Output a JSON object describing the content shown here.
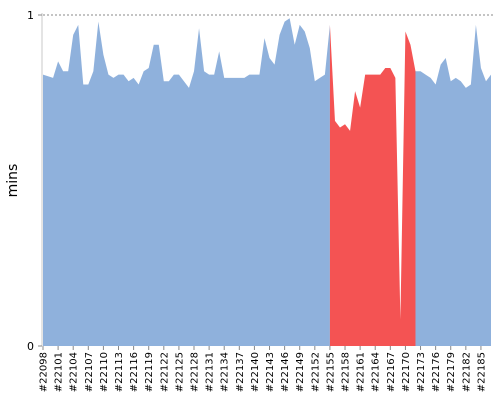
{
  "chart_data": {
    "type": "area",
    "title": "",
    "xlabel": "",
    "ylabel": "mins",
    "ylim": [
      0,
      1
    ],
    "yticks": [
      "0",
      "1"
    ],
    "grid": false,
    "ref_line": {
      "y": 1,
      "style": "dotted"
    },
    "colors": {
      "normal": "#8fb1dc",
      "highlight": "#f45353"
    },
    "highlight_range": [
      "#22155",
      "#22172"
    ],
    "x": [
      "#22098",
      "#22099",
      "#22100",
      "#22101",
      "#22102",
      "#22103",
      "#22104",
      "#22105",
      "#22106",
      "#22107",
      "#22108",
      "#22109",
      "#22110",
      "#22111",
      "#22112",
      "#22113",
      "#22114",
      "#22115",
      "#22116",
      "#22117",
      "#22118",
      "#22119",
      "#22120",
      "#22121",
      "#22122",
      "#22123",
      "#22124",
      "#22125",
      "#22126",
      "#22127",
      "#22128",
      "#22129",
      "#22130",
      "#22131",
      "#22132",
      "#22133",
      "#22134",
      "#22135",
      "#22136",
      "#22137",
      "#22138",
      "#22139",
      "#22140",
      "#22141",
      "#22142",
      "#22143",
      "#22144",
      "#22145",
      "#22146",
      "#22147",
      "#22148",
      "#22149",
      "#22150",
      "#22151",
      "#22152",
      "#22153",
      "#22154",
      "#22155",
      "#22156",
      "#22157",
      "#22158",
      "#22159",
      "#22160",
      "#22161",
      "#22162",
      "#22163",
      "#22164",
      "#22165",
      "#22166",
      "#22167",
      "#22168",
      "#22169",
      "#22170",
      "#22171",
      "#22172",
      "#22173",
      "#22174",
      "#22175",
      "#22176",
      "#22177",
      "#22178",
      "#22179",
      "#22180",
      "#22181",
      "#22182",
      "#22183",
      "#22184",
      "#22185",
      "#22186",
      "#22187"
    ],
    "xtick_labels": [
      "#22098",
      "#22101",
      "#22104",
      "#22107",
      "#22110",
      "#22113",
      "#22116",
      "#22119",
      "#22122",
      "#22125",
      "#22128",
      "#22131",
      "#22134",
      "#22137",
      "#22140",
      "#22143",
      "#22146",
      "#22149",
      "#22152",
      "#22155",
      "#22158",
      "#22161",
      "#22164",
      "#22167",
      "#22170",
      "#22173",
      "#22176",
      "#22179",
      "#22182",
      "#22185"
    ],
    "values": [
      0.82,
      0.815,
      0.81,
      0.86,
      0.83,
      0.83,
      0.94,
      0.97,
      0.79,
      0.79,
      0.83,
      0.98,
      0.88,
      0.82,
      0.81,
      0.82,
      0.82,
      0.8,
      0.81,
      0.79,
      0.83,
      0.84,
      0.91,
      0.91,
      0.8,
      0.8,
      0.82,
      0.82,
      0.8,
      0.78,
      0.83,
      0.96,
      0.83,
      0.82,
      0.82,
      0.89,
      0.81,
      0.81,
      0.81,
      0.81,
      0.81,
      0.82,
      0.82,
      0.82,
      0.93,
      0.87,
      0.85,
      0.94,
      0.98,
      0.99,
      0.91,
      0.97,
      0.95,
      0.9,
      0.8,
      0.81,
      0.82,
      0.97,
      0.68,
      0.66,
      0.67,
      0.65,
      0.77,
      0.72,
      0.82,
      0.82,
      0.82,
      0.82,
      0.84,
      0.84,
      0.81,
      0.08,
      0.95,
      0.91,
      0.83,
      0.83,
      0.82,
      0.81,
      0.79,
      0.85,
      0.87,
      0.8,
      0.81,
      0.8,
      0.78,
      0.79,
      0.97,
      0.84,
      0.8,
      0.82
    ]
  }
}
